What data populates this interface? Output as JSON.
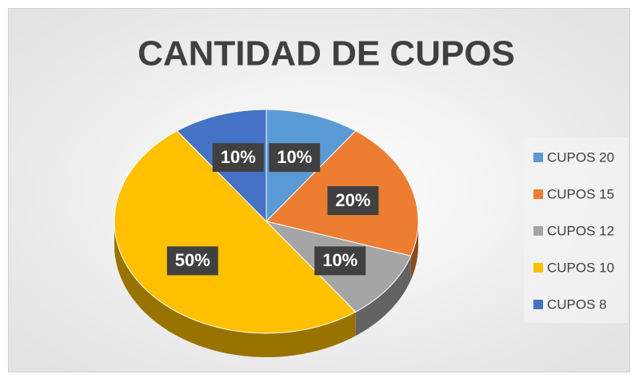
{
  "chart_data": {
    "type": "pie",
    "title": "CANTIDAD DE CUPOS",
    "categories": [
      "CUPOS 20",
      "CUPOS 15",
      "CUPOS 12",
      "CUPOS 10",
      "CUPOS 8"
    ],
    "values": [
      10,
      20,
      10,
      50,
      10
    ],
    "value_labels": [
      "10%",
      "20%",
      "10%",
      "50%",
      "10%"
    ],
    "colors": [
      "#5b9bd5",
      "#ed7d31",
      "#a5a5a5",
      "#ffc000",
      "#4472c4"
    ],
    "legend": "right"
  }
}
